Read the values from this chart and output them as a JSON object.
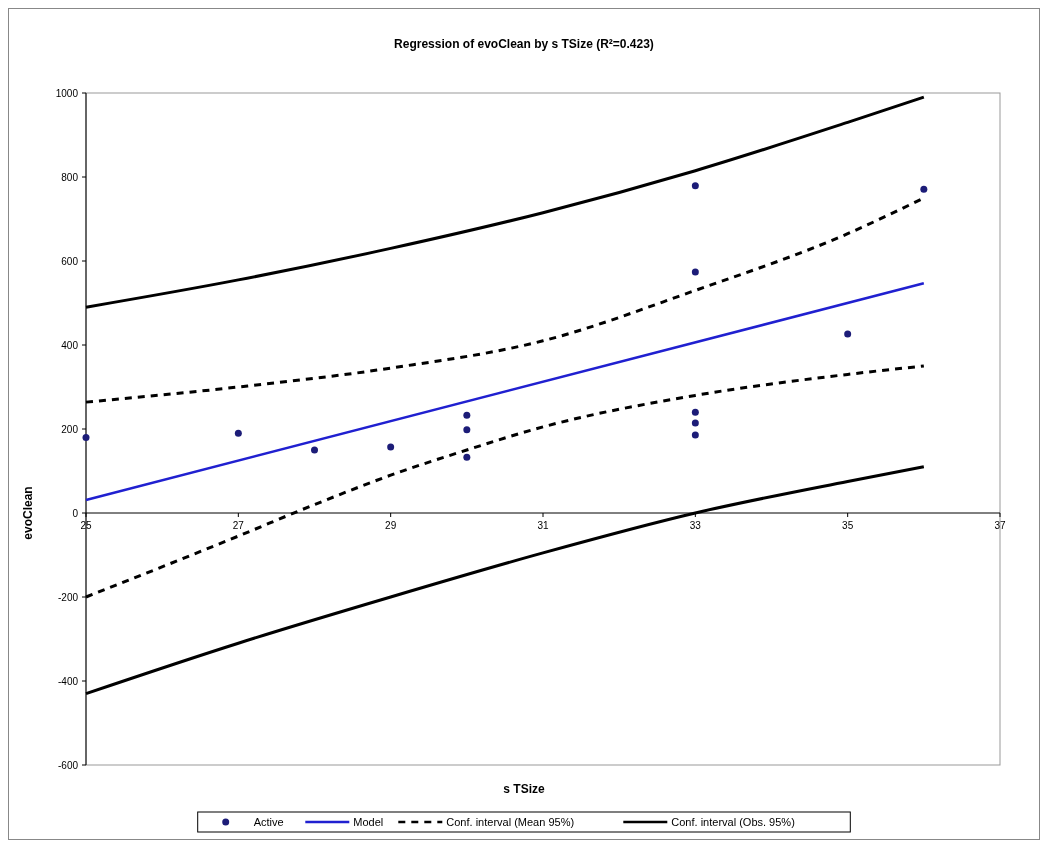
{
  "chart_data": {
    "type": "scatter",
    "title": "Regression of evoClean by s TSize (R²=0.423)",
    "xlabel": "s TSize",
    "ylabel": "evoClean",
    "xlim": [
      25,
      37
    ],
    "xticks": [
      25,
      27,
      29,
      31,
      33,
      35,
      37
    ],
    "ylim": [
      -600,
      1000
    ],
    "yticks": [
      -600,
      -400,
      -200,
      0,
      200,
      400,
      600,
      800,
      1000
    ],
    "grid": false,
    "legend": "bottom",
    "series": [
      {
        "name": "Active",
        "marker": "circle",
        "color": "#1c1c78",
        "x": [
          25,
          27,
          28,
          29,
          30,
          30,
          30,
          33,
          33,
          33,
          33,
          33,
          35,
          36
        ],
        "values": [
          180,
          190,
          150,
          157,
          233,
          198,
          133,
          779,
          574,
          240,
          214,
          186,
          426,
          771
        ]
      },
      {
        "name": "Model",
        "type": "line",
        "color": "#2020d0",
        "line_style": "solid",
        "x": [
          25,
          36
        ],
        "values": [
          31,
          547
        ]
      },
      {
        "name": "Conf. interval (Mean 95%)",
        "type": "line",
        "color": "#000000",
        "line_style": "dashed",
        "x": [
          25,
          27,
          29,
          31,
          33,
          35,
          36
        ],
        "values": [
          264,
          300,
          345,
          410,
          530,
          665,
          750
        ]
      },
      {
        "type": "line",
        "color": "#000000",
        "line_style": "dashed",
        "x": [
          25,
          27,
          28,
          29,
          30,
          31,
          33,
          35,
          36
        ],
        "values": [
          -200,
          -55,
          20,
          90,
          150,
          205,
          280,
          330,
          350
        ]
      },
      {
        "name": "Conf. interval (Obs. 95%)",
        "type": "line",
        "color": "#000000",
        "line_style": "solid",
        "x": [
          25,
          27,
          29,
          31,
          33,
          35,
          36
        ],
        "values": [
          490,
          555,
          630,
          715,
          815,
          930,
          990
        ]
      },
      {
        "type": "line",
        "color": "#000000",
        "line_style": "solid",
        "x": [
          25,
          27,
          29,
          31,
          33,
          35,
          36
        ],
        "values": [
          -430,
          -310,
          -200,
          -95,
          0,
          75,
          110
        ]
      }
    ]
  }
}
